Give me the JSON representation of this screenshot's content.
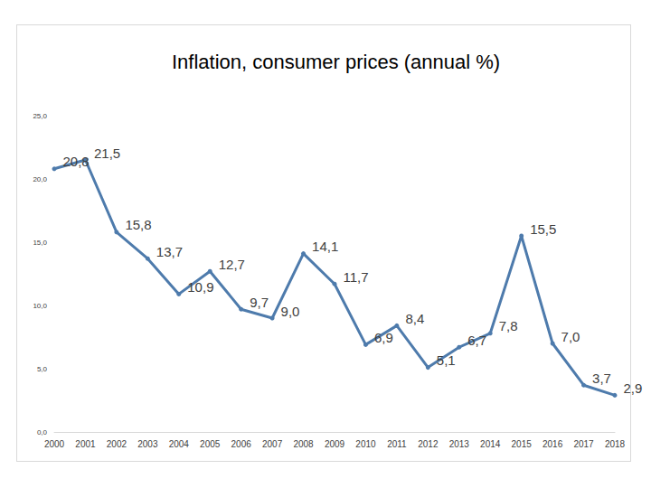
{
  "chart_data": {
    "type": "line",
    "title": "Inflation, consumer prices (annual %)",
    "categories": [
      "2000",
      "2001",
      "2002",
      "2003",
      "2004",
      "2005",
      "2006",
      "2007",
      "2008",
      "2009",
      "2010",
      "2011",
      "2012",
      "2013",
      "2014",
      "2015",
      "2016",
      "2017",
      "2018"
    ],
    "values": [
      20.8,
      21.5,
      15.8,
      13.7,
      10.9,
      12.7,
      9.7,
      9.0,
      14.1,
      11.7,
      6.9,
      8.4,
      5.1,
      6.7,
      7.8,
      15.5,
      7.0,
      3.7,
      2.9
    ],
    "value_labels": [
      "20,8",
      "21,5",
      "15,8",
      "13,7",
      "10,9",
      "12,7",
      "9,7",
      "9,0",
      "14,1",
      "11,7",
      "6,9",
      "8,4",
      "5,1",
      "6,7",
      "7,8",
      "15,5",
      "7,0",
      "3,7",
      "2,9"
    ],
    "color": "#4e7bac",
    "marker": "circle",
    "ylim": [
      0,
      25
    ],
    "yticks": [
      {
        "value": 0,
        "label": "0,0"
      },
      {
        "value": 5,
        "label": "5,0"
      },
      {
        "value": 10,
        "label": "10,0"
      },
      {
        "value": 15,
        "label": "15,0"
      },
      {
        "value": 20,
        "label": "20,0"
      },
      {
        "value": 25,
        "label": "25,0"
      }
    ],
    "grid": false,
    "data_labels": true
  }
}
